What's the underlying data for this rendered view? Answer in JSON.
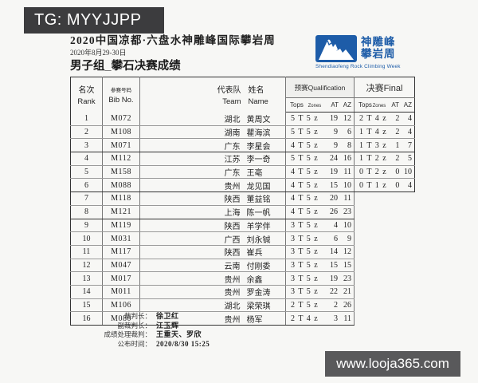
{
  "overlay": {
    "tg_badge": "TG: MYYJJPP",
    "site_badge": "www.looja365.com"
  },
  "header": {
    "title": "2020中国凉都·六盘水神雕峰国际攀岩周",
    "date": "2020年8月29-30日",
    "subtitle": "男子组_攀石决赛成绩",
    "logo": {
      "cn_line1": "神雕峰",
      "cn_line2": "攀岩周",
      "en": "Shendiaofeng Rock Climbing Week",
      "blue": "#1d5ca8"
    }
  },
  "table": {
    "headers": {
      "rank_cn": "名次",
      "rank_en": "Rank",
      "bib_cn": "参赛号码",
      "bib_en": "Bib No.",
      "team_cn": "代表队",
      "team_en": "Team",
      "name_cn": "姓名",
      "name_en": "Name",
      "qual": "预赛Qualification",
      "final": "决赛Final",
      "sub_tops": "Tops",
      "sub_zones": "Zones",
      "sub_at": "AT",
      "sub_az": "AZ"
    },
    "rows": [
      {
        "rank": "1",
        "bib": "M072",
        "team": "湖北",
        "name": "黄周文",
        "q_tops": "5 T",
        "q_zones": "5 z",
        "q_at": "19",
        "q_az": "12",
        "has_final": true,
        "f_tops": "2 T",
        "f_zones": "4 z",
        "f_at": "2",
        "f_az": "4",
        "group_end": false
      },
      {
        "rank": "2",
        "bib": "M108",
        "team": "湖南",
        "name": "瞿海滨",
        "q_tops": "5 T",
        "q_zones": "5 z",
        "q_at": "9",
        "q_az": "6",
        "has_final": true,
        "f_tops": "1 T",
        "f_zones": "4 z",
        "f_at": "2",
        "f_az": "4",
        "group_end": false
      },
      {
        "rank": "3",
        "bib": "M071",
        "team": "广东",
        "name": "李星会",
        "q_tops": "4 T",
        "q_zones": "5 z",
        "q_at": "9",
        "q_az": "8",
        "has_final": true,
        "f_tops": "1 T",
        "f_zones": "3 z",
        "f_at": "1",
        "f_az": "7",
        "group_end": true
      },
      {
        "rank": "4",
        "bib": "M112",
        "team": "江苏",
        "name": "李一奇",
        "q_tops": "5 T",
        "q_zones": "5 z",
        "q_at": "24",
        "q_az": "16",
        "has_final": true,
        "f_tops": "1 T",
        "f_zones": "2 z",
        "f_at": "2",
        "f_az": "5",
        "group_end": false
      },
      {
        "rank": "5",
        "bib": "M158",
        "team": "广东",
        "name": "王亳",
        "q_tops": "4 T",
        "q_zones": "5 z",
        "q_at": "19",
        "q_az": "11",
        "has_final": true,
        "f_tops": "0 T",
        "f_zones": "2 z",
        "f_at": "0",
        "f_az": "10",
        "group_end": false
      },
      {
        "rank": "6",
        "bib": "M088",
        "team": "贵州",
        "name": "龙见国",
        "q_tops": "4 T",
        "q_zones": "5 z",
        "q_at": "15",
        "q_az": "10",
        "has_final": true,
        "f_tops": "0 T",
        "f_zones": "1 z",
        "f_at": "0",
        "f_az": "4",
        "group_end": true
      },
      {
        "rank": "7",
        "bib": "M118",
        "team": "陕西",
        "name": "董益铭",
        "q_tops": "4 T",
        "q_zones": "5 z",
        "q_at": "20",
        "q_az": "11",
        "has_final": false,
        "group_end": false
      },
      {
        "rank": "8",
        "bib": "M121",
        "team": "上海",
        "name": "陈一帆",
        "q_tops": "4 T",
        "q_zones": "5 z",
        "q_at": "26",
        "q_az": "23",
        "has_final": false,
        "group_end": true
      },
      {
        "rank": "9",
        "bib": "M119",
        "team": "陕西",
        "name": "羊学伴",
        "q_tops": "3 T",
        "q_zones": "5 z",
        "q_at": "4",
        "q_az": "10",
        "has_final": false,
        "group_end": false
      },
      {
        "rank": "10",
        "bib": "M031",
        "team": "广西",
        "name": "刘永铖",
        "q_tops": "3 T",
        "q_zones": "5 z",
        "q_at": "6",
        "q_az": "9",
        "has_final": false,
        "group_end": false
      },
      {
        "rank": "11",
        "bib": "M117",
        "team": "陕西",
        "name": "崔兵",
        "q_tops": "3 T",
        "q_zones": "5 z",
        "q_at": "14",
        "q_az": "12",
        "has_final": false,
        "group_end": false
      },
      {
        "rank": "12",
        "bib": "M047",
        "team": "云南",
        "name": "付刚委",
        "q_tops": "3 T",
        "q_zones": "5 z",
        "q_at": "15",
        "q_az": "15",
        "has_final": false,
        "group_end": false
      },
      {
        "rank": "13",
        "bib": "M017",
        "team": "贵州",
        "name": "余鑫",
        "q_tops": "3 T",
        "q_zones": "5 z",
        "q_at": "19",
        "q_az": "23",
        "has_final": false,
        "group_end": false
      },
      {
        "rank": "14",
        "bib": "M011",
        "team": "贵州",
        "name": "罗金涛",
        "q_tops": "3 T",
        "q_zones": "5 z",
        "q_at": "22",
        "q_az": "21",
        "has_final": false,
        "group_end": false
      },
      {
        "rank": "15",
        "bib": "M106",
        "team": "湖北",
        "name": "梁荣琪",
        "q_tops": "2 T",
        "q_zones": "5 z",
        "q_at": "2",
        "q_az": "26",
        "has_final": false,
        "group_end": false
      },
      {
        "rank": "16",
        "bib": "M080",
        "team": "贵州",
        "name": "杨军",
        "q_tops": "2 T",
        "q_zones": "4 z",
        "q_at": "3",
        "q_az": "11",
        "has_final": false,
        "group_end": false
      }
    ]
  },
  "footer": {
    "lines": [
      {
        "label": "裁判长：",
        "value": "徐卫红"
      },
      {
        "label": "副裁判长：",
        "value": "江玉辉"
      },
      {
        "label": "成绩处理裁判：",
        "value": "王重天、罗欣"
      },
      {
        "label": "公布时间：",
        "value": "2020/8/30 15:25"
      }
    ]
  }
}
